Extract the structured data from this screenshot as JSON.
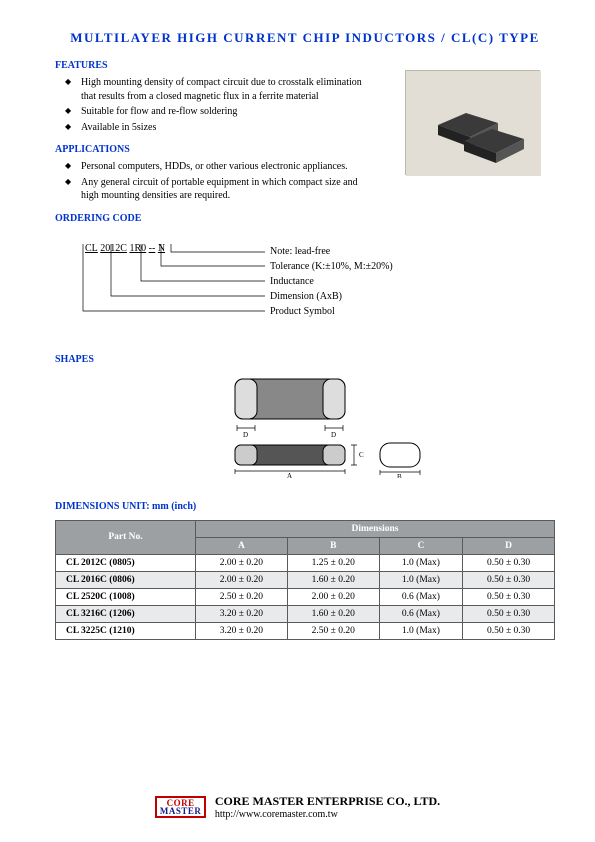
{
  "title": "MULTILAYER HIGH CURRENT CHIP INDUCTORS /  CL(C) TYPE",
  "sections": {
    "features": {
      "head": "FEATURES",
      "items": [
        "High mounting density of compact circuit due to crosstalk elimination that results from a closed magnetic flux in a ferrite material",
        "Suitable for flow and re-flow soldering",
        "Available in 5sizes"
      ]
    },
    "applications": {
      "head": "APPLICATIONS",
      "items": [
        "Personal computers, HDDs, or other various electronic appliances.",
        "Any general circuit of portable equipment in which compact size and high mounting densities are required."
      ]
    },
    "ordering": {
      "head": "ORDERING CODE",
      "code_parts": [
        "CL",
        "2012C",
        "1R0",
        "-",
        "-",
        "N"
      ],
      "notes": [
        "Note: lead-free",
        "Tolerance (K:±10%, M:±20%)",
        "Inductance",
        "Dimension (AxB)",
        "Product Symbol"
      ]
    },
    "shapes_head": "SHAPES",
    "dimensions_head": "DIMENSIONS UNIT: mm (inch)"
  },
  "dimensions_table": {
    "header_group": "Dimensions",
    "part_label": "Part No.",
    "columns": [
      "A",
      "B",
      "C",
      "D"
    ],
    "rows": [
      {
        "part": "CL 2012C (0805)",
        "a": "2.00 ± 0.20",
        "b": "1.25 ± 0.20",
        "c": "1.0 (Max)",
        "d": "0.50 ± 0.30",
        "alt": false
      },
      {
        "part": "CL 2016C (0806)",
        "a": "2.00 ± 0.20",
        "b": "1.60 ± 0.20",
        "c": "1.0 (Max)",
        "d": "0.50 ± 0.30",
        "alt": true
      },
      {
        "part": "CL 2520C (1008)",
        "a": "2.50 ± 0.20",
        "b": "2.00 ± 0.20",
        "c": "0.6 (Max)",
        "d": "0.50 ± 0.30",
        "alt": false
      },
      {
        "part": "CL 3216C (1206)",
        "a": "3.20 ± 0.20",
        "b": "1.60 ± 0.20",
        "c": "0.6 (Max)",
        "d": "0.50 ± 0.30",
        "alt": true
      },
      {
        "part": "CL 3225C (1210)",
        "a": "3.20 ± 0.20",
        "b": "2.50 ± 0.20",
        "c": "1.0 (Max)",
        "d": "0.50 ± 0.30",
        "alt": false
      }
    ]
  },
  "footer": {
    "logo": {
      "l1": "CORE",
      "l2": "MASTER"
    },
    "company": "CORE MASTER ENTERPRISE CO., LTD.",
    "url": "http://www.coremaster.com.tw"
  },
  "colors": {
    "heading": "#0033cc",
    "table_header_bg": "#9da0a3",
    "table_alt_bg": "#e8eaec",
    "logo_border": "#c00000"
  }
}
